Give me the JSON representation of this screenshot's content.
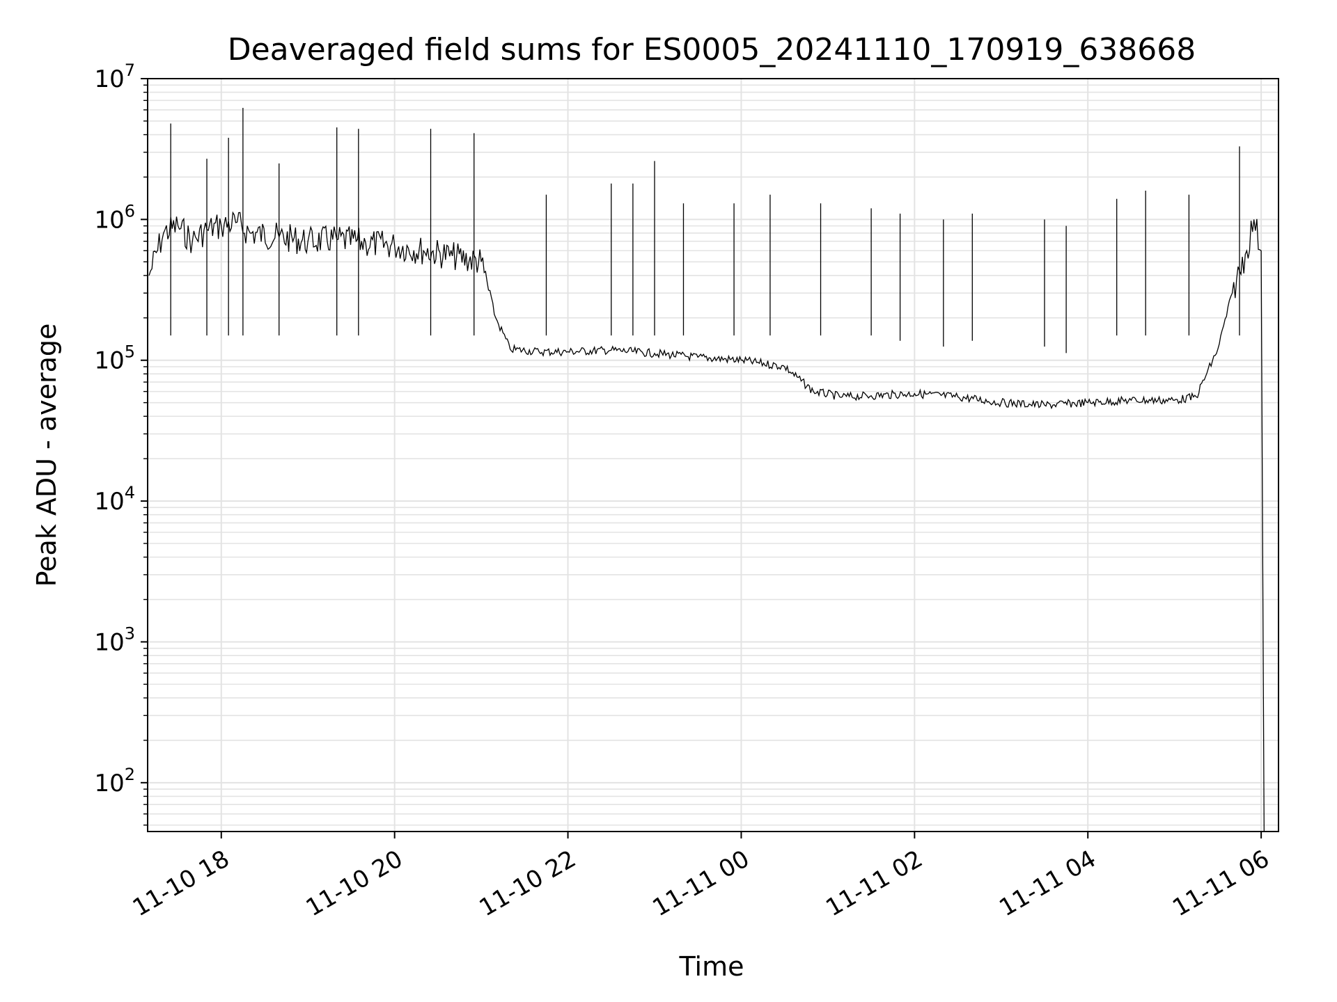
{
  "chart_data": {
    "type": "line",
    "title": "Deaveraged field sums for ES0005_20241110_170919_638668",
    "xlabel": "Time",
    "ylabel": "Peak ADU - average",
    "yscale": "log",
    "ylim": [
      45,
      10000000
    ],
    "xlim": [
      "2024-11-10 17:09",
      "2024-11-11 06:12"
    ],
    "grid": "major and minor, light gray",
    "line_color": "#000000",
    "x_ticks": [
      "11-10 18",
      "11-10 20",
      "11-10 22",
      "11-11 00",
      "11-11 02",
      "11-11 04",
      "11-11 06"
    ],
    "y_ticks": [
      {
        "base": "10",
        "exp": "2"
      },
      {
        "base": "10",
        "exp": "3"
      },
      {
        "base": "10",
        "exp": "4"
      },
      {
        "base": "10",
        "exp": "5"
      },
      {
        "base": "10",
        "exp": "6"
      },
      {
        "base": "10",
        "exp": "7"
      }
    ],
    "series": [
      {
        "name": "",
        "x": [
          "2024-11-10 17:10",
          "2024-11-10 17:20",
          "2024-11-10 17:30",
          "2024-11-10 17:40",
          "2024-11-10 17:50",
          "2024-11-10 18:00",
          "2024-11-10 18:10",
          "2024-11-10 18:20",
          "2024-11-10 18:40",
          "2024-11-10 19:00",
          "2024-11-10 19:20",
          "2024-11-10 19:40",
          "2024-11-10 20:00",
          "2024-11-10 20:20",
          "2024-11-10 20:40",
          "2024-11-10 21:00",
          "2024-11-10 21:10",
          "2024-11-10 21:20",
          "2024-11-10 21:40",
          "2024-11-10 22:00",
          "2024-11-10 22:30",
          "2024-11-10 23:00",
          "2024-11-10 23:30",
          "2024-11-11 00:00",
          "2024-11-11 00:30",
          "2024-11-11 00:50",
          "2024-11-11 01:10",
          "2024-11-11 01:30",
          "2024-11-11 02:00",
          "2024-11-11 02:30",
          "2024-11-11 03:00",
          "2024-11-11 03:30",
          "2024-11-11 04:00",
          "2024-11-11 04:30",
          "2024-11-11 05:00",
          "2024-11-11 05:15",
          "2024-11-11 05:30",
          "2024-11-11 05:40",
          "2024-11-11 05:50",
          "2024-11-11 05:55",
          "2024-11-11 06:00",
          "2024-11-11 06:02"
        ],
        "y": [
          400000,
          800000,
          900000,
          700000,
          850000,
          900000,
          950000,
          800000,
          750000,
          700000,
          720000,
          680000,
          650000,
          600000,
          550000,
          500000,
          200000,
          120000,
          115000,
          115000,
          118000,
          112000,
          105000,
          100000,
          90000,
          60000,
          55000,
          56000,
          58000,
          55000,
          50000,
          48000,
          50000,
          52000,
          52000,
          55000,
          120000,
          300000,
          600000,
          1000000,
          600000,
          45
        ]
      }
    ],
    "spikes": {
      "x": [
        "2024-11-10 17:25",
        "2024-11-10 17:50",
        "2024-11-10 18:05",
        "2024-11-10 18:15",
        "2024-11-10 18:40",
        "2024-11-10 19:20",
        "2024-11-10 19:35",
        "2024-11-10 20:25",
        "2024-11-10 20:55",
        "2024-11-10 21:45",
        "2024-11-10 22:30",
        "2024-11-10 22:45",
        "2024-11-10 23:00",
        "2024-11-10 23:20",
        "2024-11-10 23:55",
        "2024-11-11 00:20",
        "2024-11-11 00:55",
        "2024-11-11 01:30",
        "2024-11-11 01:50",
        "2024-11-11 02:20",
        "2024-11-11 02:40",
        "2024-11-11 03:30",
        "2024-11-11 03:45",
        "2024-11-11 04:20",
        "2024-11-11 04:40",
        "2024-11-11 05:10",
        "2024-11-11 05:45"
      ],
      "y": [
        4800000,
        2700000,
        3800000,
        6200000,
        2500000,
        4500000,
        4400000,
        4400000,
        4100000,
        1500000,
        1800000,
        1800000,
        2600000,
        1300000,
        1300000,
        1500000,
        1300000,
        1200000,
        1100000,
        1000000,
        1100000,
        1000000,
        900000,
        1400000,
        1600000,
        1500000,
        3300000
      ]
    }
  }
}
